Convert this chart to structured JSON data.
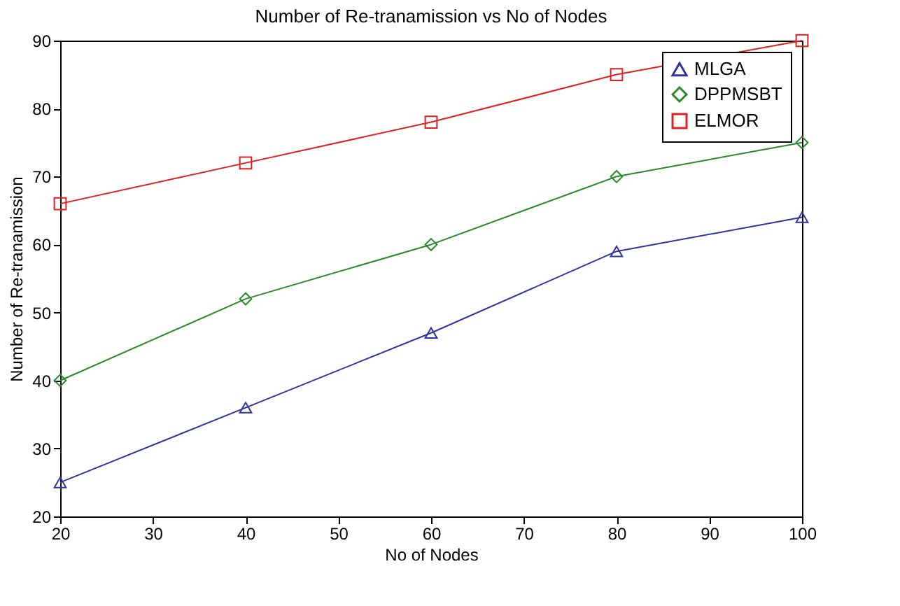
{
  "chart_data": {
    "type": "line",
    "title": "Number of Re-tranamission vs No of Nodes",
    "xlabel": "No of Nodes",
    "ylabel": "Number of Re-tranamission",
    "x": [
      20,
      40,
      60,
      80,
      100
    ],
    "xlim": [
      20,
      100
    ],
    "xticks": [
      20,
      30,
      40,
      50,
      60,
      70,
      80,
      90,
      100
    ],
    "ylim": [
      20,
      90
    ],
    "yticks": [
      20,
      30,
      40,
      50,
      60,
      70,
      80,
      90
    ],
    "grid": false,
    "legend": "top right",
    "line_style": "solid",
    "series": [
      {
        "name": "MLGA",
        "color": "#3333a0",
        "marker": "triangle",
        "values": [
          25,
          36,
          47,
          59,
          64
        ]
      },
      {
        "name": "DPPMSBT",
        "color": "#2a8a2a",
        "marker": "diamond",
        "values": [
          40,
          52,
          60,
          70,
          75
        ]
      },
      {
        "name": "ELMOR",
        "color": "#e02020",
        "marker": "square",
        "values": [
          66,
          72,
          78,
          85,
          90
        ]
      }
    ]
  }
}
